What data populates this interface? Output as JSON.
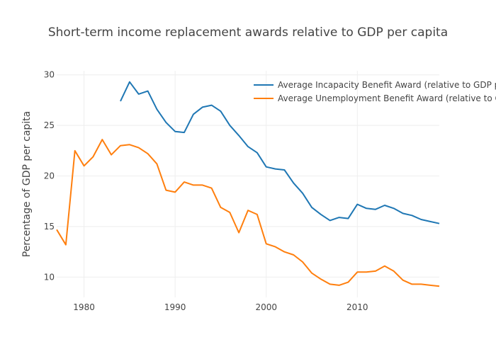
{
  "chart_data": {
    "type": "line",
    "title": "Short-term income replacement awards relative to GDP per capita",
    "xlabel": "",
    "ylabel": "Percentage of GDP per capita",
    "xlim": [
      1977,
      2019
    ],
    "ylim": [
      8,
      30.4
    ],
    "xticks": [
      1980,
      1990,
      2000,
      2010
    ],
    "yticks": [
      10,
      15,
      20,
      25,
      30
    ],
    "grid": true,
    "legend_position": "top-right",
    "series": [
      {
        "name": "Average Incapacity Benefit Award (relative to GDP per capita)",
        "color": "#1f77b4",
        "x": [
          1984,
          1985,
          1986,
          1987,
          1988,
          1989,
          1990,
          1991,
          1992,
          1993,
          1994,
          1995,
          1996,
          1997,
          1998,
          1999,
          2000,
          2001,
          2002,
          2003,
          2004,
          2005,
          2006,
          2007,
          2008,
          2009,
          2010,
          2011,
          2012,
          2013,
          2014,
          2015,
          2016,
          2017,
          2018,
          2019
        ],
        "y": [
          27.4,
          29.3,
          28.1,
          28.4,
          26.6,
          25.3,
          24.4,
          24.3,
          26.1,
          26.8,
          27.0,
          26.4,
          25.0,
          24.0,
          22.9,
          22.3,
          20.9,
          20.7,
          20.6,
          19.3,
          18.3,
          16.9,
          16.2,
          15.6,
          15.9,
          15.8,
          17.2,
          16.8,
          16.7,
          17.1,
          16.8,
          16.3,
          16.1,
          15.7,
          15.5,
          15.3
        ]
      },
      {
        "name": "Average Unemployment Benefit Award (relative to GDP per capita)",
        "color": "#ff7f0e",
        "x": [
          1977,
          1978,
          1979,
          1980,
          1981,
          1982,
          1983,
          1984,
          1985,
          1986,
          1987,
          1988,
          1989,
          1990,
          1991,
          1992,
          1993,
          1994,
          1995,
          1996,
          1997,
          1998,
          1999,
          2000,
          2001,
          2002,
          2003,
          2004,
          2005,
          2006,
          2007,
          2008,
          2009,
          2010,
          2011,
          2012,
          2013,
          2014,
          2015,
          2016,
          2017,
          2018,
          2019
        ],
        "y": [
          14.7,
          13.2,
          22.5,
          21.0,
          21.9,
          23.6,
          22.1,
          23.0,
          23.1,
          22.8,
          22.2,
          21.2,
          18.6,
          18.4,
          19.4,
          19.1,
          19.1,
          18.8,
          16.9,
          16.4,
          14.4,
          16.6,
          16.2,
          13.3,
          13.0,
          12.5,
          12.2,
          11.5,
          10.4,
          9.8,
          9.3,
          9.2,
          9.5,
          10.5,
          10.5,
          10.6,
          11.1,
          10.6,
          9.7,
          9.3,
          9.3,
          9.2,
          9.1
        ]
      }
    ]
  }
}
